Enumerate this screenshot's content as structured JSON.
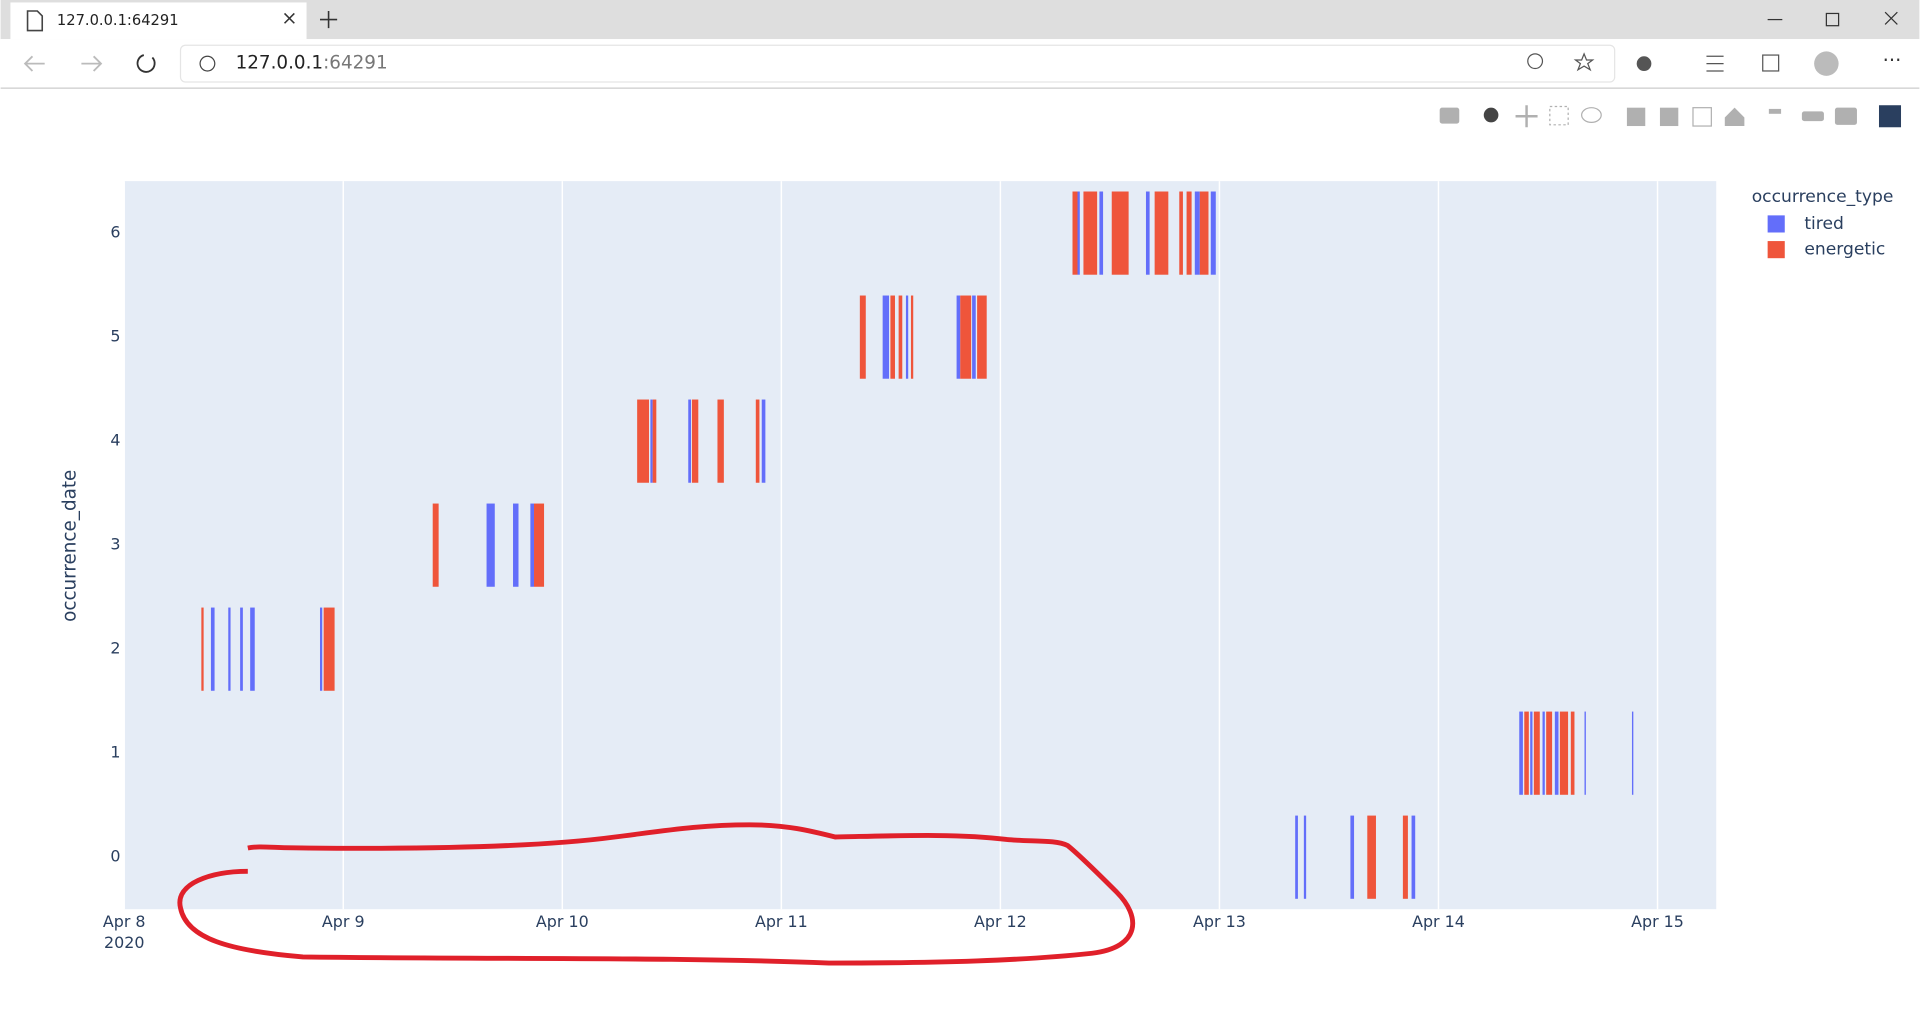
{
  "browser": {
    "tab_title": "127.0.0.1:64291",
    "url_host": "127.0.0.1",
    "url_port": ":64291"
  },
  "chart_data": {
    "type": "timeline",
    "y_title": "occurrence_date",
    "legend_title": "occurrence_type",
    "legend": "top-right-outside",
    "xgrid": true,
    "ygrid": false,
    "xlim": [
      "2020-04-08 00:00",
      "2020-04-15 06:26"
    ],
    "xticks": [
      {
        "value": "2020-04-08 00:00",
        "label": "Apr 8"
      },
      {
        "value": "2020-04-09 00:00",
        "label": "Apr 9"
      },
      {
        "value": "2020-04-10 00:00",
        "label": "Apr 10"
      },
      {
        "value": "2020-04-11 00:00",
        "label": "Apr 11"
      },
      {
        "value": "2020-04-12 00:00",
        "label": "Apr 12"
      },
      {
        "value": "2020-04-13 00:00",
        "label": "Apr 13"
      },
      {
        "value": "2020-04-14 00:00",
        "label": "Apr 14"
      },
      {
        "value": "2020-04-15 00:00",
        "label": "Apr 15"
      }
    ],
    "xtick_year": "2020",
    "ylim": [
      -0.5,
      6.5
    ],
    "yticks": [
      0,
      1,
      2,
      3,
      4,
      5,
      6
    ],
    "series": [
      {
        "name": "tired",
        "color": "#636efa",
        "x_start": [
          "2020-04-08 09:30",
          "2020-04-08 11:24",
          "2020-04-08 12:42",
          "2020-04-08 13:48",
          "2020-04-08 21:27",
          "2020-04-09 15:42",
          "2020-04-09 18:36",
          "2020-04-09 20:30",
          "2020-04-10 09:39",
          "2020-04-10 13:48",
          "2020-04-10 21:51",
          "2020-04-11 11:06",
          "2020-04-11 13:39",
          "2020-04-11 19:12",
          "2020-04-11 20:54",
          "2020-04-12 08:27",
          "2020-04-12 10:51",
          "2020-04-12 15:57",
          "2020-04-12 21:18",
          "2020-04-12 23:03",
          "2020-04-13 08:18",
          "2020-04-13 09:15",
          "2020-04-13 14:21",
          "2020-04-13 21:03",
          "2020-04-14 08:51",
          "2020-04-14 10:03",
          "2020-04-14 11:24",
          "2020-04-14 12:45",
          "2020-04-14 16:00",
          "2020-04-14 21:12"
        ],
        "x_end": [
          "2020-04-08 09:54",
          "2020-04-08 11:39",
          "2020-04-08 13:00",
          "2020-04-08 14:18",
          "2020-04-08 21:42",
          "2020-04-09 16:36",
          "2020-04-09 19:12",
          "2020-04-09 20:54",
          "2020-04-10 09:54",
          "2020-04-10 14:06",
          "2020-04-10 22:15",
          "2020-04-11 11:48",
          "2020-04-11 13:54",
          "2020-04-11 19:36",
          "2020-04-11 21:18",
          "2020-04-12 08:42",
          "2020-04-12 11:15",
          "2020-04-12 16:21",
          "2020-04-12 21:51",
          "2020-04-12 23:36",
          "2020-04-13 08:36",
          "2020-04-13 09:30",
          "2020-04-13 14:45",
          "2020-04-13 21:27",
          "2020-04-14 09:15",
          "2020-04-14 10:18",
          "2020-04-14 11:39",
          "2020-04-14 13:09",
          "2020-04-14 16:09",
          "2020-04-14 21:21"
        ],
        "values": [
          2,
          2,
          2,
          2,
          2,
          3,
          3,
          3,
          4,
          4,
          4,
          5,
          5,
          5,
          5,
          6,
          6,
          6,
          6,
          6,
          0,
          0,
          0,
          0,
          1,
          1,
          1,
          1,
          1,
          1
        ]
      },
      {
        "name": "energetic",
        "color": "#ef553b",
        "x_start": [
          "2020-04-08 08:27",
          "2020-04-08 21:51",
          "2020-04-09 09:48",
          "2020-04-09 20:54",
          "2020-04-10 08:12",
          "2020-04-10 09:54",
          "2020-04-10 14:12",
          "2020-04-10 17:00",
          "2020-04-10 21:12",
          "2020-04-11 08:36",
          "2020-04-11 11:57",
          "2020-04-11 12:51",
          "2020-04-11 14:12",
          "2020-04-11 19:36",
          "2020-04-11 21:27",
          "2020-04-12 07:54",
          "2020-04-12 09:06",
          "2020-04-12 12:12",
          "2020-04-12 16:54",
          "2020-04-12 19:36",
          "2020-04-12 20:24",
          "2020-04-12 21:51",
          "2020-04-13 16:12",
          "2020-04-13 20:06",
          "2020-04-14 09:24",
          "2020-04-14 10:27",
          "2020-04-14 11:48",
          "2020-04-14 13:18",
          "2020-04-14 14:30"
        ],
        "x_end": [
          "2020-04-08 08:42",
          "2020-04-08 23:03",
          "2020-04-09 10:27",
          "2020-04-09 22:00",
          "2020-04-10 09:30",
          "2020-04-10 10:18",
          "2020-04-10 14:54",
          "2020-04-10 17:42",
          "2020-04-10 21:36",
          "2020-04-11 09:15",
          "2020-04-11 12:27",
          "2020-04-11 13:15",
          "2020-04-11 14:27",
          "2020-04-11 20:48",
          "2020-04-11 22:30",
          "2020-04-12 08:27",
          "2020-04-12 10:36",
          "2020-04-12 14:03",
          "2020-04-12 18:24",
          "2020-04-12 20:00",
          "2020-04-12 20:57",
          "2020-04-12 22:48",
          "2020-04-13 17:09",
          "2020-04-13 20:39",
          "2020-04-14 09:54",
          "2020-04-14 11:06",
          "2020-04-14 12:27",
          "2020-04-14 14:12",
          "2020-04-14 14:54"
        ],
        "values": [
          2,
          2,
          3,
          3,
          4,
          4,
          4,
          4,
          4,
          5,
          5,
          5,
          5,
          5,
          5,
          6,
          6,
          6,
          6,
          6,
          6,
          6,
          0,
          0,
          1,
          1,
          1,
          1,
          1
        ]
      }
    ]
  }
}
